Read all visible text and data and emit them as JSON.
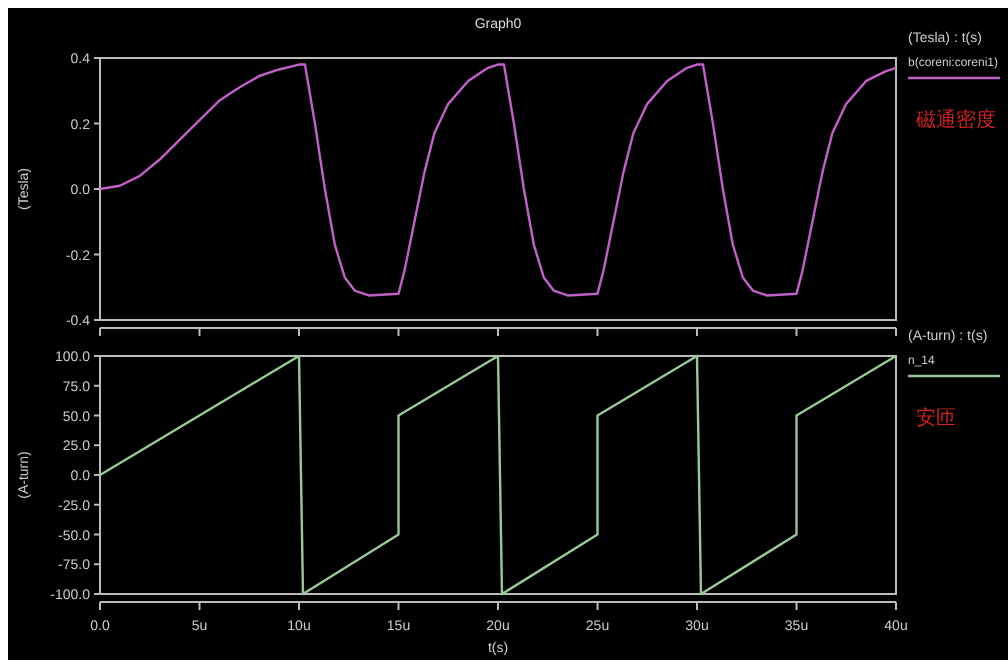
{
  "chart_data": [
    {
      "type": "line",
      "title": "Graph0",
      "ylabel": "(Tesla)",
      "legend_title": "(Tesla) : t(s)",
      "legend": "right",
      "tick_labels": "y",
      "annotations": [
        "磁通密度"
      ],
      "xlim": [
        0,
        40
      ],
      "xticks": [
        {
          "value": 0,
          "label": null
        },
        {
          "value": 5,
          "label": null
        },
        {
          "value": 10,
          "label": null
        },
        {
          "value": 15,
          "label": null
        },
        {
          "value": 20,
          "label": null
        },
        {
          "value": 25,
          "label": null
        },
        {
          "value": 30,
          "label": null
        },
        {
          "value": 35,
          "label": null
        },
        {
          "value": 40,
          "label": null
        }
      ],
      "ylim": [
        -0.4,
        0.4
      ],
      "yticks": [
        {
          "value": -0.4,
          "label": "-0.4"
        },
        {
          "value": -0.2,
          "label": "-0.2"
        },
        {
          "value": 0,
          "label": "0.0"
        },
        {
          "value": 0.2,
          "label": "0.2"
        },
        {
          "value": 0.4,
          "label": "0.4"
        }
      ],
      "series": [
        {
          "name": "b(coreni:coreni1)",
          "color": "#c060c8",
          "x": [
            0,
            1,
            2,
            3,
            4,
            5,
            6,
            7,
            8,
            9,
            10,
            10.3,
            10.8,
            11.3,
            11.8,
            12.3,
            12.8,
            13.5,
            15,
            15.3,
            15.8,
            16.3,
            16.8,
            17.5,
            18.5,
            19.5,
            20,
            20.3,
            20.8,
            21.3,
            21.8,
            22.3,
            22.8,
            23.5,
            25,
            25.3,
            25.8,
            26.3,
            26.8,
            27.5,
            28.5,
            29.5,
            30,
            30.3,
            30.8,
            31.3,
            31.8,
            32.3,
            32.8,
            33.5,
            35,
            35.3,
            35.8,
            36.3,
            36.8,
            37.5,
            38.5,
            39.5,
            40
          ],
          "values": [
            0,
            0.01,
            0.04,
            0.09,
            0.15,
            0.21,
            0.27,
            0.31,
            0.345,
            0.365,
            0.38,
            0.38,
            0.2,
            0,
            -0.17,
            -0.27,
            -0.31,
            -0.325,
            -0.32,
            -0.25,
            -0.1,
            0.05,
            0.17,
            0.26,
            0.33,
            0.37,
            0.38,
            0.38,
            0.2,
            0,
            -0.17,
            -0.27,
            -0.31,
            -0.325,
            -0.32,
            -0.25,
            -0.1,
            0.05,
            0.17,
            0.26,
            0.33,
            0.37,
            0.38,
            0.38,
            0.2,
            0,
            -0.17,
            -0.27,
            -0.31,
            -0.325,
            -0.32,
            -0.25,
            -0.1,
            0.05,
            0.17,
            0.26,
            0.33,
            0.36,
            0.37
          ]
        }
      ]
    },
    {
      "type": "line",
      "ylabel": "(A-turn)",
      "xlabel": "t(s)",
      "legend_title": "(A-turn) : t(s)",
      "legend": "right",
      "annotations": [
        "安匝"
      ],
      "xlim": [
        0,
        40
      ],
      "xticks": [
        {
          "value": 0,
          "label": "0.0"
        },
        {
          "value": 5,
          "label": "5u"
        },
        {
          "value": 10,
          "label": "10u"
        },
        {
          "value": 15,
          "label": "15u"
        },
        {
          "value": 20,
          "label": "20u"
        },
        {
          "value": 25,
          "label": "25u"
        },
        {
          "value": 30,
          "label": "30u"
        },
        {
          "value": 35,
          "label": "35u"
        },
        {
          "value": 40,
          "label": "40u"
        }
      ],
      "ylim": [
        -100,
        100
      ],
      "yticks": [
        {
          "value": -100,
          "label": "-100.0"
        },
        {
          "value": -75,
          "label": "-75.0"
        },
        {
          "value": -50,
          "label": "-50.0"
        },
        {
          "value": -25,
          "label": "-25.0"
        },
        {
          "value": 0,
          "label": "0.0"
        },
        {
          "value": 25,
          "label": "25.0"
        },
        {
          "value": 50,
          "label": "50.0"
        },
        {
          "value": 75,
          "label": "75.0"
        },
        {
          "value": 100,
          "label": "100.0"
        }
      ],
      "series": [
        {
          "name": "n_14",
          "color": "#98c898",
          "x": [
            0,
            10,
            10.2,
            15,
            15,
            20,
            20.2,
            25,
            25,
            30,
            30.2,
            35,
            35,
            40
          ],
          "values": [
            0,
            100,
            -100,
            -50,
            50,
            100,
            -100,
            -50,
            50,
            100,
            -100,
            -50,
            50,
            100
          ]
        }
      ]
    }
  ]
}
